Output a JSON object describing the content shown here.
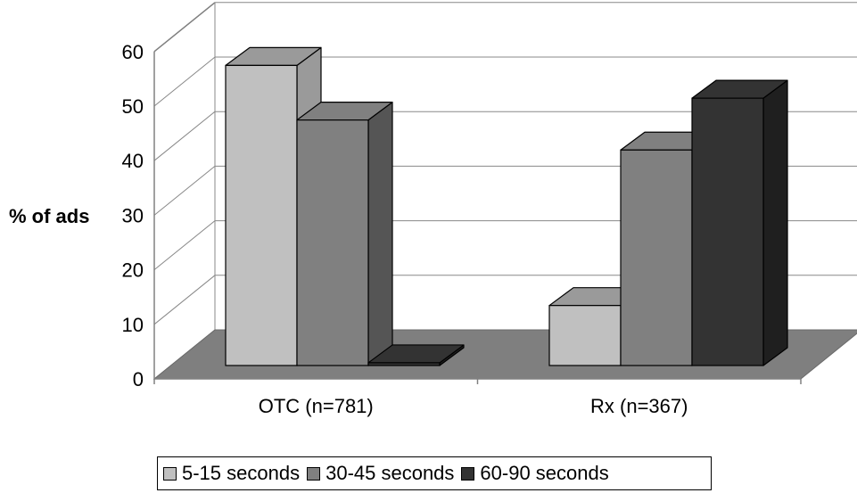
{
  "chart_data": {
    "type": "bar",
    "ylabel": "% of ads",
    "xlabel": "",
    "ylim": [
      0,
      60
    ],
    "y_ticks": [
      "0",
      "10",
      "20",
      "30",
      "40",
      "50",
      "60"
    ],
    "categories": [
      "OTC (n=781)",
      "Rx (n=367)"
    ],
    "series": [
      {
        "name": "5-15 seconds",
        "values": [
          55,
          11
        ],
        "color": "#c0c0c0",
        "side_color": "#9a9a9a",
        "top_color": "#9a9a9a"
      },
      {
        "name": "30-45 seconds",
        "values": [
          45,
          39.5
        ],
        "color": "#808080",
        "side_color": "#555555",
        "top_color": "#808080"
      },
      {
        "name": "60-90 seconds",
        "values": [
          0.5,
          49
        ],
        "color": "#333333",
        "side_color": "#1f1f1f",
        "top_color": "#333333"
      }
    ],
    "grid": true,
    "three_d": true,
    "legend_position": "bottom",
    "colors": {
      "floor": "#7f7f7f",
      "wall_line": "#888888",
      "axis": "#808080"
    }
  }
}
